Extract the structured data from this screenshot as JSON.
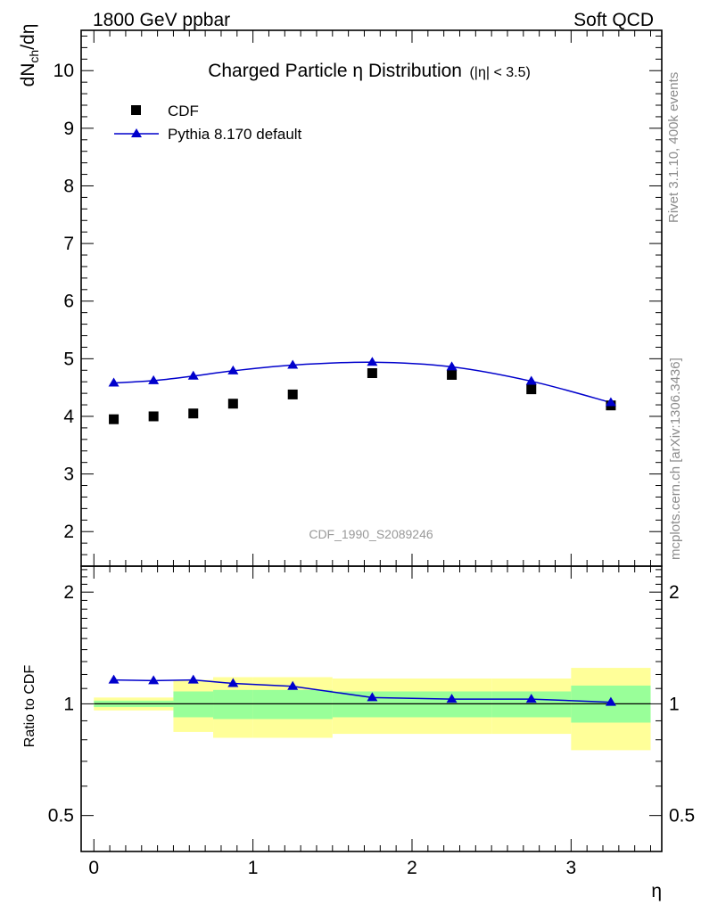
{
  "header": {
    "left": "1800 GeV ppbar",
    "right": "Soft QCD"
  },
  "side_labels": {
    "rivet": "Rivet 3.1.10,  400k events",
    "mcplots": "mcplots.cern.ch [arXiv:1306.3436]"
  },
  "colors": {
    "mc_line": "#0000cc",
    "data_marker": "#000000",
    "band_inner": "#99ff99",
    "band_outer": "#ffff99",
    "watermark": "#999999"
  },
  "chart_data": [
    {
      "type": "scatter",
      "panel": "main",
      "title": "Charged Particle η Distribution",
      "title_cut": "(|η| < 3.5)",
      "ylabel": "dN_ch/dη",
      "xlabel": "",
      "xlim": [
        -0.08,
        3.57
      ],
      "ylim": [
        1.4,
        10.7
      ],
      "yticks": [
        2,
        3,
        4,
        5,
        6,
        7,
        8,
        9,
        10
      ],
      "analysis_tag": "CDF_1990_S2089246",
      "legend_position": "top-left",
      "series": [
        {
          "name": "CDF",
          "marker": "square",
          "x": [
            0.125,
            0.375,
            0.625,
            0.875,
            1.25,
            1.75,
            2.25,
            2.75,
            3.25
          ],
          "values": [
            3.95,
            4.0,
            4.05,
            4.22,
            4.38,
            4.75,
            4.72,
            4.47,
            4.19
          ]
        },
        {
          "name": "Pythia 8.170 default",
          "marker": "triangle",
          "x": [
            0.125,
            0.375,
            0.625,
            0.875,
            1.25,
            1.75,
            2.25,
            2.75,
            3.25
          ],
          "values": [
            4.58,
            4.62,
            4.7,
            4.79,
            4.89,
            4.94,
            4.86,
            4.61,
            4.24
          ]
        }
      ]
    },
    {
      "type": "line",
      "panel": "ratio",
      "ylabel": "Ratio to CDF",
      "xlabel": "η",
      "xlim": [
        -0.08,
        3.57
      ],
      "ylim": [
        0.4,
        2.35
      ],
      "log_y": true,
      "yticks": [
        0.5,
        1,
        2
      ],
      "ytick_labels": [
        "0.5",
        "1",
        "2"
      ],
      "xticks": [
        0,
        1,
        2,
        3
      ],
      "xtick_labels": [
        "0",
        "1",
        "2",
        "3"
      ],
      "reference": 1,
      "bands": [
        {
          "x_low": 0.0,
          "x_high": 0.5,
          "inner": [
            0.98,
            1.02
          ],
          "outer": [
            0.96,
            1.04
          ]
        },
        {
          "x_low": 0.5,
          "x_high": 0.75,
          "inner": [
            0.92,
            1.08
          ],
          "outer": [
            0.84,
            1.16
          ]
        },
        {
          "x_low": 0.75,
          "x_high": 1.0,
          "inner": [
            0.91,
            1.09
          ],
          "outer": [
            0.81,
            1.18
          ]
        },
        {
          "x_low": 1.0,
          "x_high": 1.5,
          "inner": [
            0.91,
            1.09
          ],
          "outer": [
            0.81,
            1.18
          ]
        },
        {
          "x_low": 1.5,
          "x_high": 2.5,
          "inner": [
            0.92,
            1.08
          ],
          "outer": [
            0.83,
            1.17
          ]
        },
        {
          "x_low": 2.5,
          "x_high": 3.0,
          "inner": [
            0.92,
            1.08
          ],
          "outer": [
            0.83,
            1.17
          ]
        },
        {
          "x_low": 3.0,
          "x_high": 3.5,
          "inner": [
            0.89,
            1.12
          ],
          "outer": [
            0.75,
            1.25
          ]
        }
      ],
      "series": [
        {
          "name": "Pythia 8.170 default / CDF",
          "x": [
            0.125,
            0.375,
            0.625,
            0.875,
            1.25,
            1.75,
            2.25,
            2.75,
            3.25
          ],
          "values": [
            1.16,
            1.155,
            1.16,
            1.135,
            1.115,
            1.04,
            1.03,
            1.03,
            1.01
          ]
        }
      ]
    }
  ]
}
